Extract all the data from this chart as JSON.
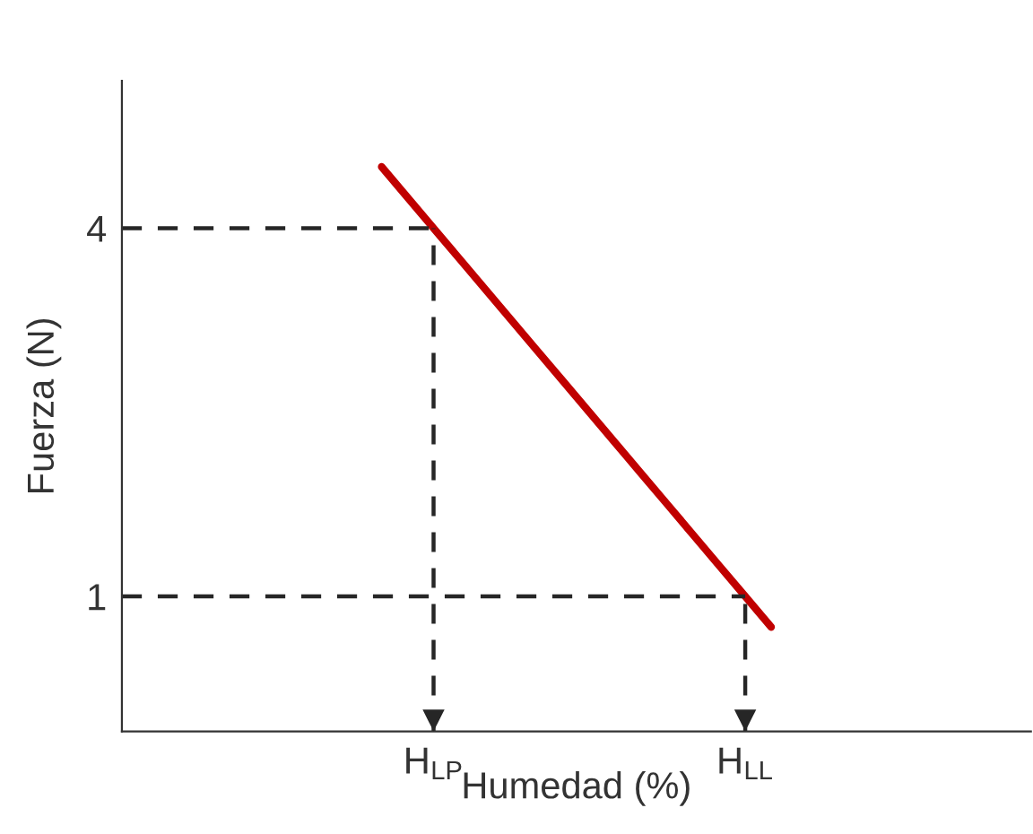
{
  "chart_data": {
    "type": "line",
    "xlabel": "Humedad (%)",
    "ylabel": "Fuerza (N)",
    "categories": [
      null,
      null,
      null,
      null,
      null,
      null,
      null,
      null,
      null,
      null,
      null,
      null,
      "H$_{LP}$",
      null,
      null,
      null,
      null,
      null,
      null,
      null,
      null,
      null,
      null,
      null,
      "H$_{LL}$",
      null,
      null,
      null,
      null,
      null,
      null,
      null,
      null,
      null,
      null,
      null
    ],
    "ylim": [
      -0.1,
      5.2
    ],
    "yticks": [
      1,
      4
    ],
    "series": [
      {
        "color": "#c00000",
        "line_style": "solid",
        "values": [
          null,
          null,
          null,
          null,
          null,
          null,
          null,
          null,
          null,
          null,
          4.5,
          4.25,
          4,
          3.75,
          3.5,
          3.25,
          3,
          2.75,
          2.5,
          2.25,
          2,
          1.75,
          1.5,
          1.25,
          1,
          0.75,
          null,
          null,
          null,
          null,
          null,
          null,
          null,
          null,
          null,
          null
        ]
      },
      {
        "color": "#262626",
        "line_style": "dashed",
        "values": [
          4,
          4,
          4,
          4,
          4,
          4,
          4,
          4,
          4,
          4,
          4,
          4,
          4,
          null,
          null,
          null,
          null,
          null,
          null,
          null,
          null,
          null,
          null,
          null,
          null,
          null,
          null,
          null,
          null,
          null,
          null,
          null,
          null,
          null,
          null,
          null
        ],
        "errors": [
          null,
          null,
          null,
          null,
          null,
          null,
          null,
          null,
          null,
          null,
          null,
          null,
          [
            -0.1,
            4
          ],
          null,
          null,
          null,
          null,
          null,
          null,
          null,
          null,
          null,
          null,
          null,
          null,
          null,
          null,
          null,
          null,
          null,
          null,
          null,
          null,
          null,
          null,
          null
        ]
      },
      {
        "color": "#262626",
        "line_style": "dashed",
        "values": [
          1,
          1,
          1,
          1,
          1,
          1,
          1,
          1,
          1,
          1,
          1,
          1,
          1,
          1,
          1,
          1,
          1,
          1,
          1,
          1,
          1,
          1,
          1,
          1,
          1,
          null,
          null,
          null,
          null,
          null,
          null,
          null,
          null,
          null,
          null,
          null
        ],
        "errors": [
          null,
          null,
          null,
          null,
          null,
          null,
          null,
          null,
          null,
          null,
          null,
          null,
          null,
          null,
          null,
          null,
          null,
          null,
          null,
          null,
          null,
          null,
          null,
          null,
          [
            -0.1,
            1
          ],
          null,
          null,
          null,
          null,
          null,
          null,
          null,
          null,
          null,
          null,
          null
        ]
      }
    ]
  }
}
